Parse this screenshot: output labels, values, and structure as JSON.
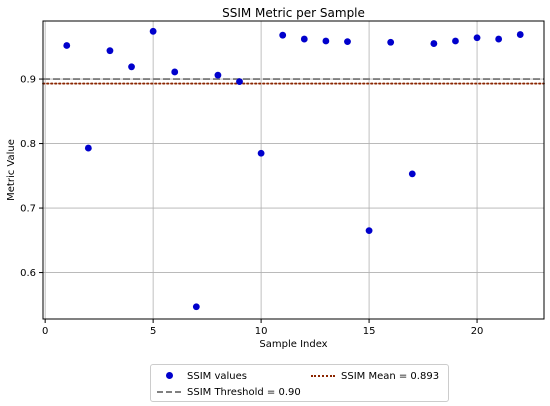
{
  "chart_data": {
    "type": "scatter",
    "title": "SSIM Metric per Sample",
    "xlabel": "Sample Index",
    "ylabel": "Metric Value",
    "xlim": [
      -0.1,
      23.1
    ],
    "ylim": [
      0.528,
      0.99
    ],
    "xticks": [
      0,
      5,
      10,
      15,
      20
    ],
    "yticks": [
      0.6,
      0.7,
      0.8,
      0.9
    ],
    "xtick_labels": [
      "0",
      "5",
      "10",
      "15",
      "20"
    ],
    "ytick_labels": [
      "0.6",
      "0.7",
      "0.8",
      "0.9"
    ],
    "grid": true,
    "legend_position": "bottom-center",
    "series": [
      {
        "name": "SSIM values",
        "color": "#0000cc",
        "points": [
          {
            "x": 1,
            "y": 0.952
          },
          {
            "x": 2,
            "y": 0.793
          },
          {
            "x": 3,
            "y": 0.944
          },
          {
            "x": 4,
            "y": 0.919
          },
          {
            "x": 5,
            "y": 0.974
          },
          {
            "x": 6,
            "y": 0.911
          },
          {
            "x": 7,
            "y": 0.547
          },
          {
            "x": 8,
            "y": 0.906
          },
          {
            "x": 9,
            "y": 0.896
          },
          {
            "x": 10,
            "y": 0.785
          },
          {
            "x": 11,
            "y": 0.968
          },
          {
            "x": 12,
            "y": 0.962
          },
          {
            "x": 13,
            "y": 0.959
          },
          {
            "x": 14,
            "y": 0.958
          },
          {
            "x": 15,
            "y": 0.665
          },
          {
            "x": 16,
            "y": 0.957
          },
          {
            "x": 17,
            "y": 0.753
          },
          {
            "x": 18,
            "y": 0.955
          },
          {
            "x": 19,
            "y": 0.959
          },
          {
            "x": 20,
            "y": 0.964
          },
          {
            "x": 21,
            "y": 0.962
          },
          {
            "x": 22,
            "y": 0.969
          }
        ]
      }
    ],
    "reference_lines": [
      {
        "name": "SSIM Threshold = 0.90",
        "y": 0.9,
        "style": "dashed",
        "color": "#808080"
      },
      {
        "name": "SSIM Mean = 0.893",
        "y": 0.893,
        "style": "dotted",
        "color": "#8b2500"
      }
    ]
  },
  "legend": {
    "items": [
      {
        "label": "SSIM values"
      },
      {
        "label": "SSIM Mean = 0.893"
      },
      {
        "label": "SSIM Threshold = 0.90"
      }
    ]
  }
}
